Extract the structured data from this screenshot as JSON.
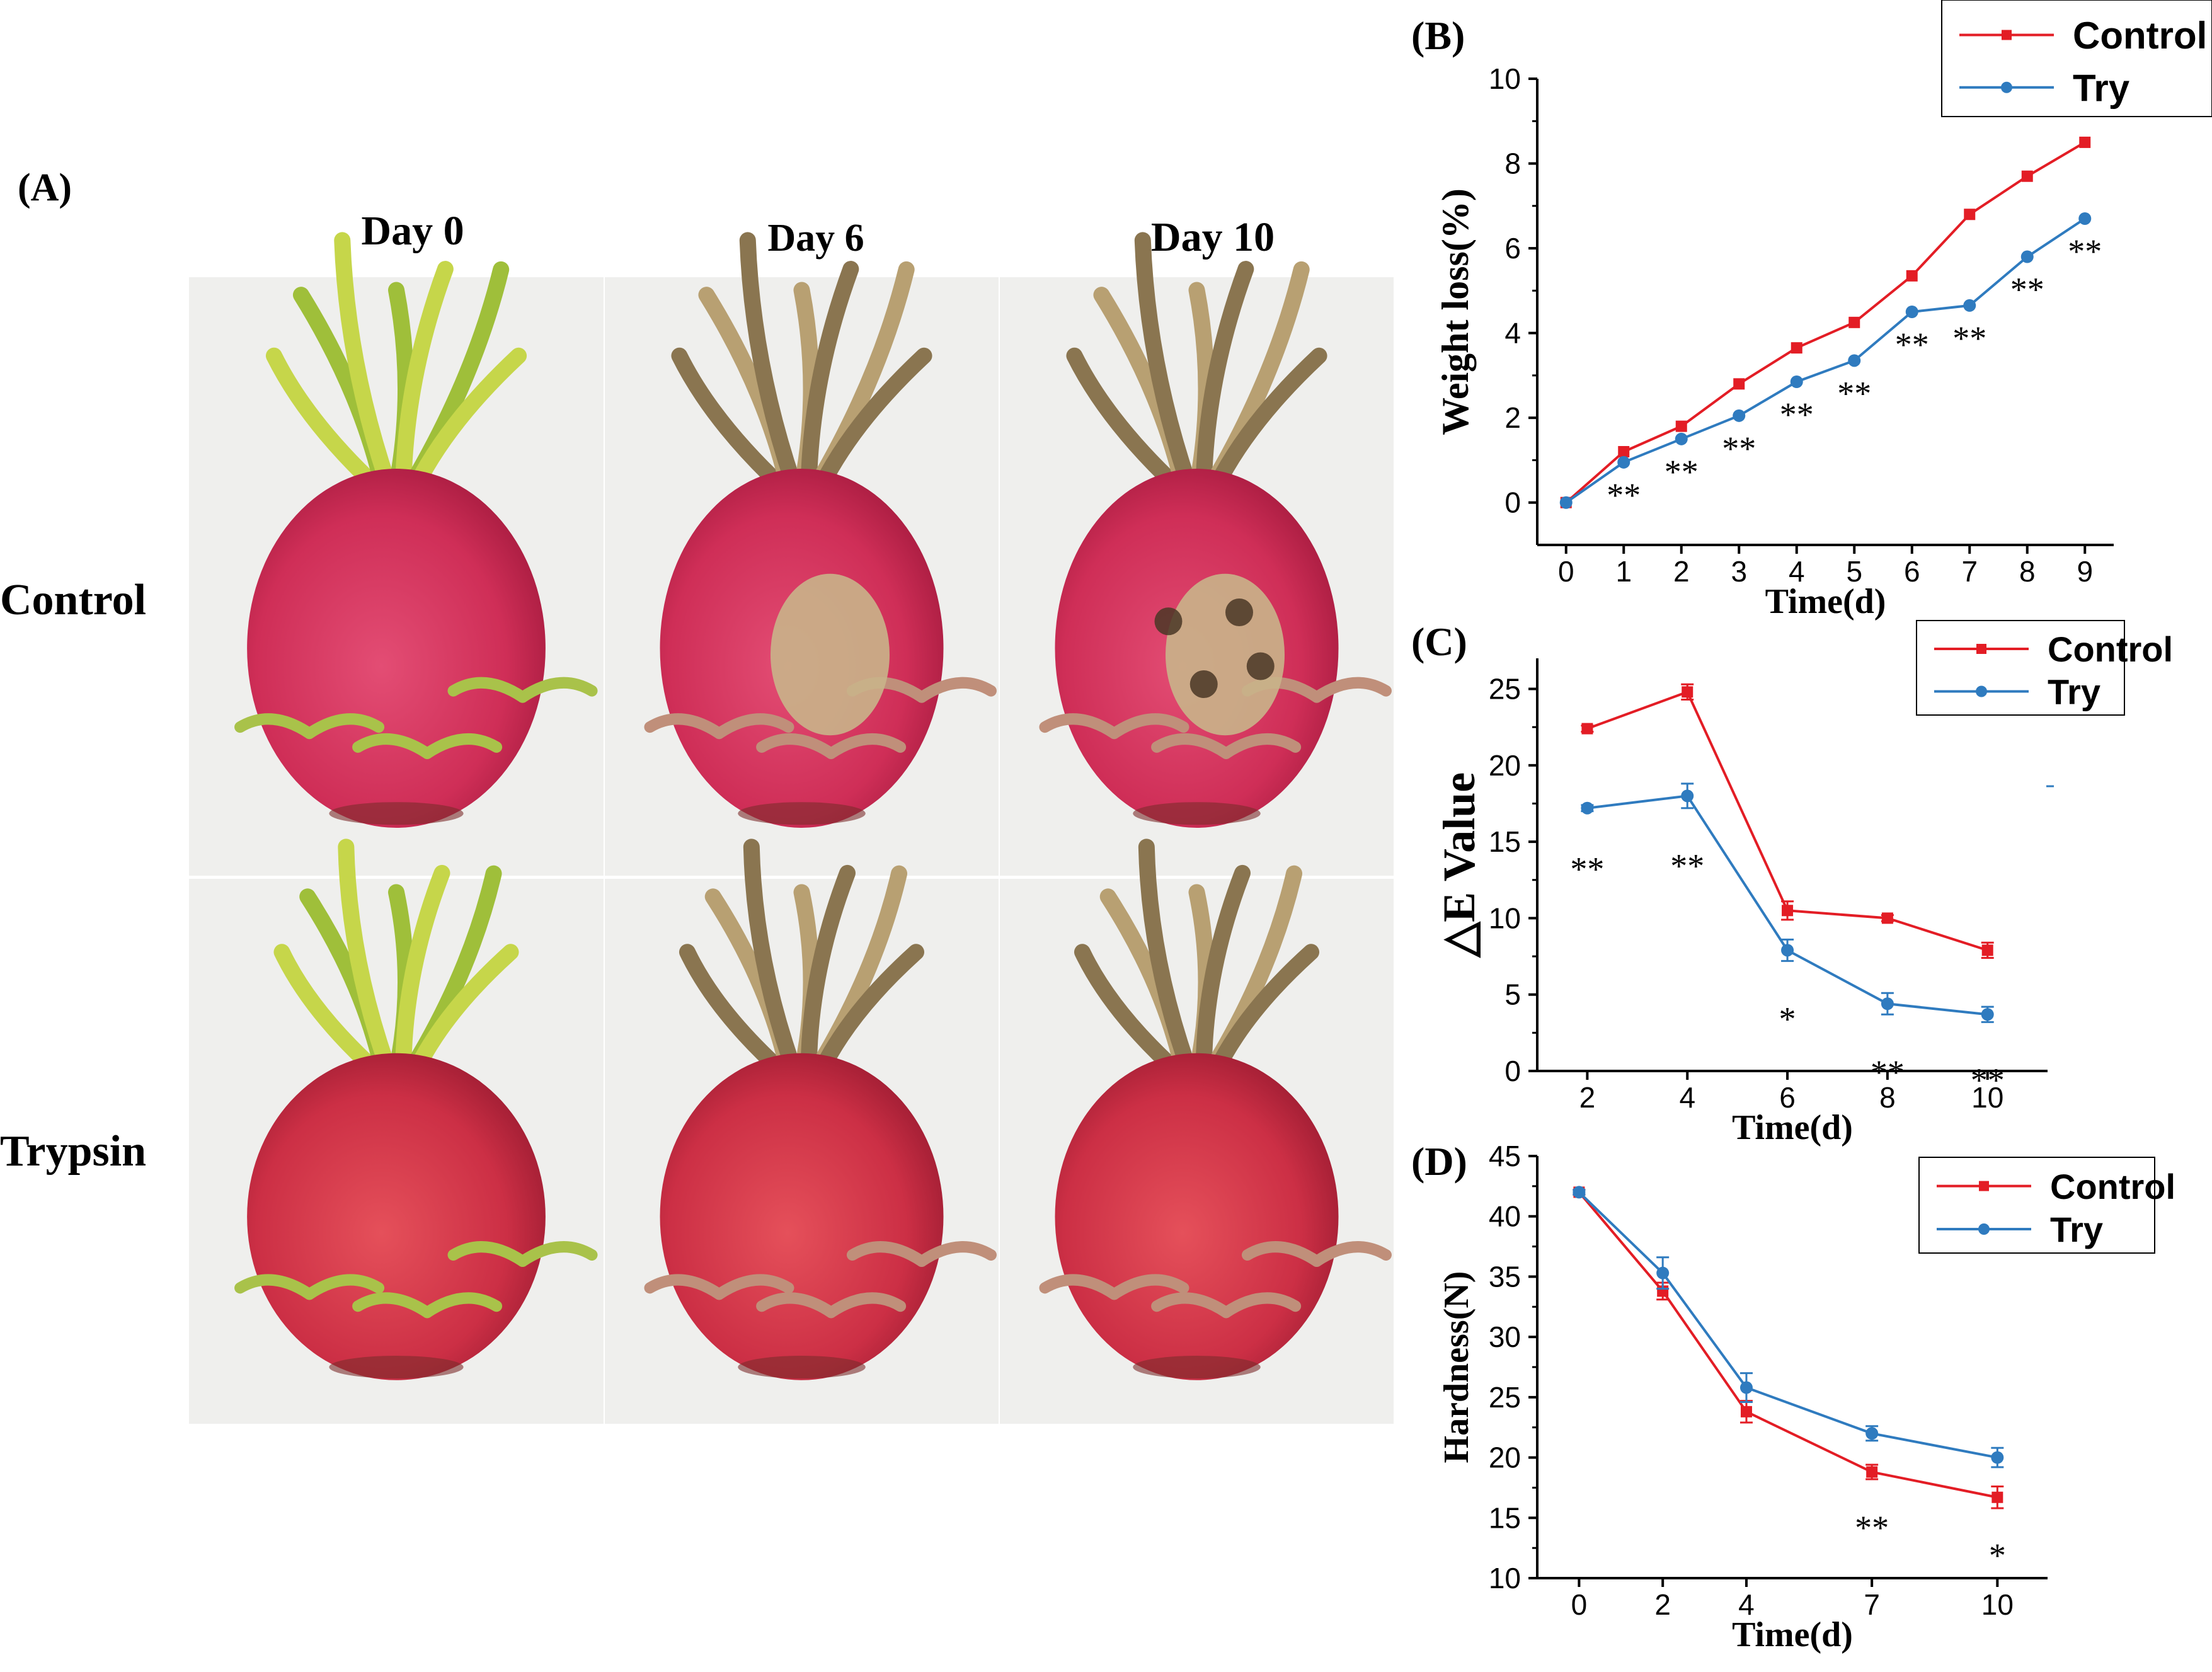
{
  "panel_a": {
    "label": "(A)",
    "columns": [
      "Day 0",
      "Day 6",
      "Day 10"
    ],
    "rows": [
      "Control",
      "Trypsin"
    ]
  },
  "colors": {
    "control": "#e31d25",
    "treatment": "#2f7bbf",
    "axis": "#000000"
  },
  "chart_data": [
    {
      "panel": "(B)",
      "type": "line",
      "xlabel": "Time(d)",
      "ylabel": "Weight loss(%)",
      "x": [
        0,
        1,
        2,
        3,
        4,
        5,
        6,
        7,
        8,
        9
      ],
      "xticks": [
        0,
        1,
        2,
        3,
        4,
        5,
        6,
        7,
        8,
        9
      ],
      "xlim": [
        -0.5,
        9.5
      ],
      "ylim": [
        -1,
        10
      ],
      "yticks": [
        0,
        2,
        4,
        6,
        8,
        10
      ],
      "legend": {
        "position": "top-right",
        "entries": [
          "Control",
          "Try"
        ]
      },
      "series": [
        {
          "name": "Control",
          "marker": "square",
          "values": [
            0,
            1.2,
            1.8,
            2.8,
            3.65,
            4.25,
            5.35,
            6.8,
            7.7,
            8.5
          ]
        },
        {
          "name": "Try",
          "marker": "circle",
          "values": [
            0,
            0.95,
            1.5,
            2.05,
            2.85,
            3.35,
            4.5,
            4.65,
            5.8,
            6.7
          ]
        }
      ],
      "annotations": [
        {
          "x": 1,
          "text": "**"
        },
        {
          "x": 2,
          "text": "**"
        },
        {
          "x": 3,
          "text": "**"
        },
        {
          "x": 4,
          "text": "**"
        },
        {
          "x": 5,
          "text": "**"
        },
        {
          "x": 6,
          "text": "**"
        },
        {
          "x": 7,
          "text": "**"
        },
        {
          "x": 8,
          "text": "**"
        },
        {
          "x": 9,
          "text": "**"
        }
      ]
    },
    {
      "panel": "(C)",
      "type": "line",
      "xlabel": "Time(d)",
      "ylabel": "△E Value",
      "x": [
        2,
        4,
        6,
        8,
        10
      ],
      "xticks": [
        2,
        4,
        6,
        8,
        10
      ],
      "xlim": [
        1,
        11.2
      ],
      "ylim": [
        0,
        27
      ],
      "yticks": [
        0,
        5,
        10,
        15,
        20,
        25
      ],
      "legend": {
        "position": "top-right",
        "entries": [
          "Control",
          "Try"
        ]
      },
      "series": [
        {
          "name": "Control",
          "marker": "square",
          "values": [
            22.4,
            24.8,
            10.5,
            10.0,
            7.9
          ],
          "errors": [
            0.2,
            0.5,
            0.6,
            0.2,
            0.5
          ]
        },
        {
          "name": "Try",
          "marker": "circle",
          "values": [
            17.2,
            18.0,
            7.9,
            4.4,
            3.7
          ],
          "errors": [
            0.2,
            0.8,
            0.7,
            0.7,
            0.5
          ]
        }
      ],
      "annotations": [
        {
          "x": 2,
          "text": "**"
        },
        {
          "x": 4,
          "text": "**"
        },
        {
          "x": 6,
          "text": "*"
        },
        {
          "x": 8,
          "text": "**"
        },
        {
          "x": 10,
          "text": "**"
        }
      ]
    },
    {
      "panel": "(D)",
      "type": "line",
      "xlabel": "Time(d)",
      "ylabel": "Hardness(N)",
      "x": [
        0,
        2,
        4,
        7,
        10
      ],
      "xticks": [
        0,
        2,
        4,
        7,
        10
      ],
      "xlim": [
        -1,
        11.2
      ],
      "ylim": [
        10,
        45
      ],
      "yticks": [
        10,
        15,
        20,
        25,
        30,
        35,
        40,
        45
      ],
      "legend": {
        "position": "top-right",
        "entries": [
          "Control",
          "Try"
        ]
      },
      "series": [
        {
          "name": "Control",
          "marker": "square",
          "values": [
            42.0,
            33.8,
            23.8,
            18.8,
            16.7
          ],
          "errors": [
            0.2,
            0.7,
            0.9,
            0.6,
            0.9
          ]
        },
        {
          "name": "Try",
          "marker": "circle",
          "values": [
            42.0,
            35.3,
            25.8,
            22.0,
            20.0
          ],
          "errors": [
            0.2,
            1.3,
            1.2,
            0.6,
            0.8
          ]
        }
      ],
      "annotations": [
        {
          "x": 7,
          "text": "**"
        },
        {
          "x": 10,
          "text": "*"
        }
      ]
    }
  ]
}
